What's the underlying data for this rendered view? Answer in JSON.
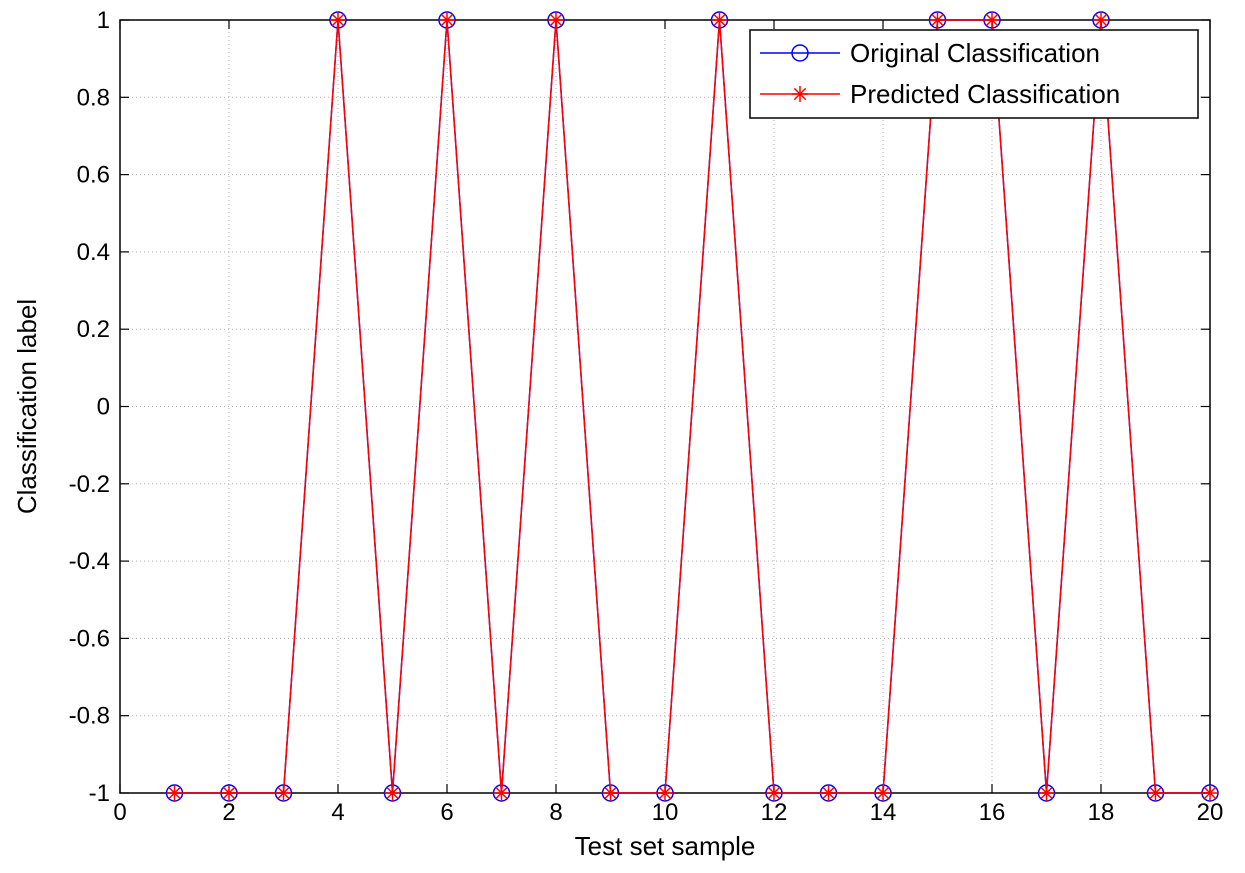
{
  "chart_data": {
    "type": "line",
    "title": "",
    "xlabel": "Test set sample",
    "ylabel": "Classification label",
    "xlim": [
      0,
      20
    ],
    "ylim": [
      -1,
      1
    ],
    "xticks": [
      0,
      2,
      4,
      6,
      8,
      10,
      12,
      14,
      16,
      18,
      20
    ],
    "yticks": [
      -1,
      -0.8,
      -0.6,
      -0.4,
      -0.2,
      0,
      0.2,
      0.4,
      0.6,
      0.8,
      1
    ],
    "xtick_labels": [
      "0",
      "2",
      "4",
      "6",
      "8",
      "10",
      "12",
      "14",
      "16",
      "18",
      "20"
    ],
    "ytick_labels": [
      "-1",
      "-0.8",
      "-0.6",
      "-0.4",
      "-0.2",
      "0",
      "0.2",
      "0.4",
      "0.6",
      "0.8",
      "1"
    ],
    "grid": true,
    "legend_position": "top-right",
    "x": [
      1,
      2,
      3,
      4,
      5,
      6,
      7,
      8,
      9,
      10,
      11,
      12,
      13,
      14,
      15,
      16,
      17,
      18,
      19,
      20
    ],
    "series": [
      {
        "name": "Original Classification",
        "color": "#0000ff",
        "marker": "circle",
        "values": [
          -1,
          -1,
          -1,
          1,
          -1,
          1,
          -1,
          1,
          -1,
          -1,
          1,
          -1,
          -1,
          -1,
          1,
          1,
          -1,
          1,
          -1,
          -1
        ]
      },
      {
        "name": "Predicted Classification",
        "color": "#ff0000",
        "marker": "asterisk",
        "values": [
          -1,
          -1,
          -1,
          1,
          -1,
          1,
          -1,
          1,
          -1,
          -1,
          1,
          -1,
          -1,
          -1,
          1,
          1,
          -1,
          1,
          -1,
          -1
        ]
      }
    ]
  }
}
